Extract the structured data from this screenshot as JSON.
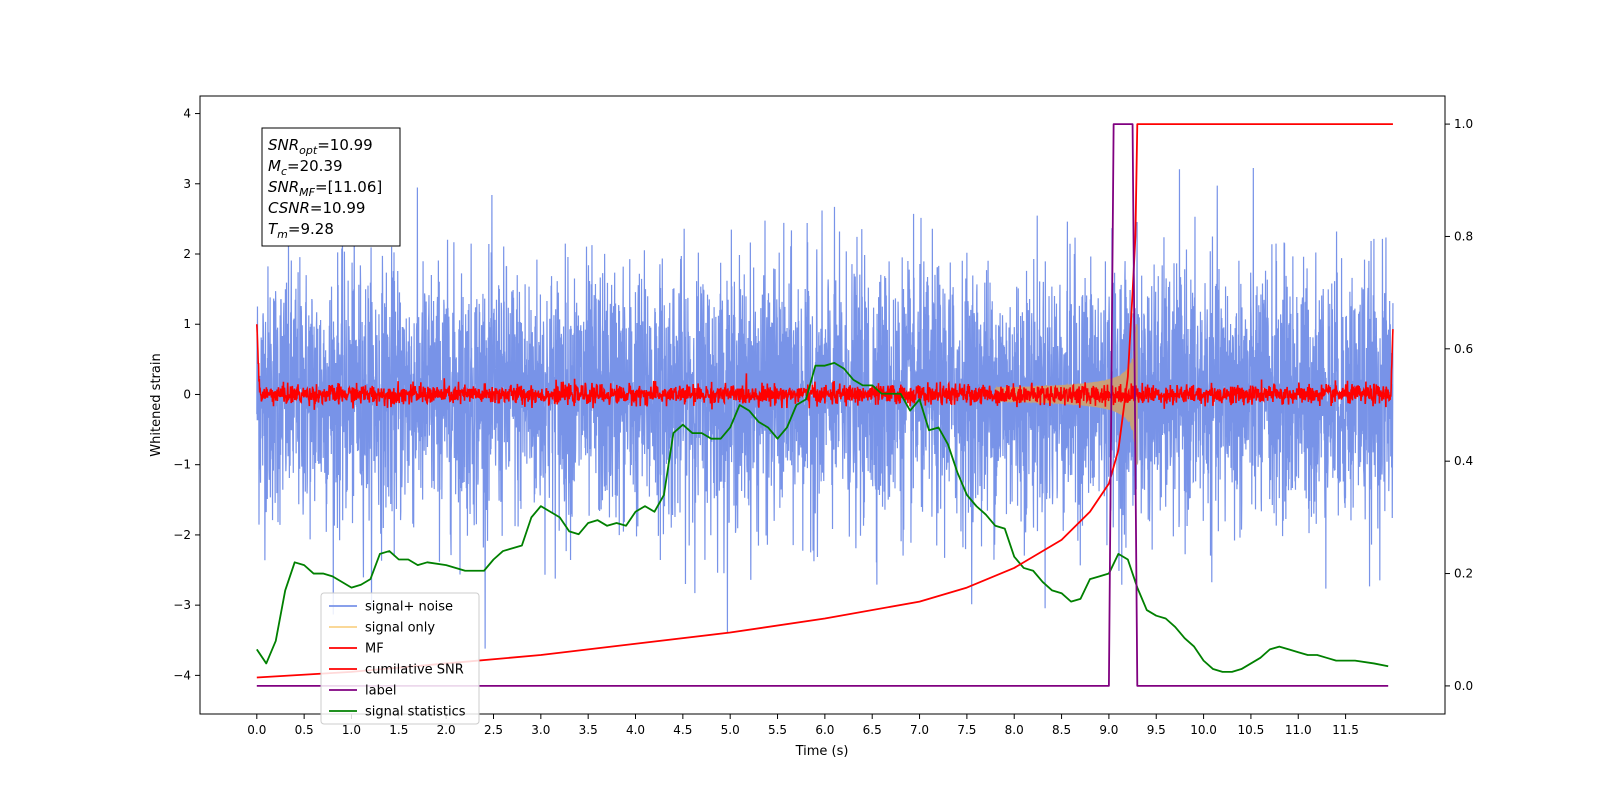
{
  "chart_data": {
    "type": "line",
    "xlabel": "Time (s)",
    "ylabel": "Whitened strain",
    "xlim": [
      -0.6,
      12.55
    ],
    "ylim": [
      -4.55,
      4.25
    ],
    "ylim_right": [
      -0.05,
      1.05
    ],
    "x_ticks": [
      "0.0",
      "0.5",
      "1.0",
      "1.5",
      "2.0",
      "2.5",
      "3.0",
      "3.5",
      "4.0",
      "4.5",
      "5.0",
      "5.5",
      "6.0",
      "6.5",
      "7.0",
      "7.5",
      "8.0",
      "8.5",
      "9.0",
      "9.5",
      "10.0",
      "10.5",
      "11.0",
      "11.5"
    ],
    "y_ticks": [
      {
        "value": 4,
        "label": "4"
      },
      {
        "value": 3,
        "label": "3"
      },
      {
        "value": 2,
        "label": "2"
      },
      {
        "value": 1,
        "label": "1"
      },
      {
        "value": 0,
        "label": "0"
      },
      {
        "value": -1,
        "label": "−1"
      },
      {
        "value": -2,
        "label": "−2"
      },
      {
        "value": -3,
        "label": "−3"
      },
      {
        "value": -4,
        "label": "−4"
      }
    ],
    "y_right_ticks": [
      "0.0",
      "0.2",
      "0.4",
      "0.6",
      "0.8",
      "1.0"
    ],
    "grid": false,
    "legend_placement": "lower-left",
    "legend": [
      {
        "name": "signal+ noise",
        "color": "#7893e8"
      },
      {
        "name": "signal only",
        "color": "#f9d28a"
      },
      {
        "name": "MF",
        "color": "#ff0000"
      },
      {
        "name": "cumilative SNR",
        "color": "#ff0000"
      },
      {
        "name": "label",
        "color": "#800080"
      },
      {
        "name": "signal statistics",
        "color": "#008000"
      }
    ],
    "annotation": {
      "lines": [
        {
          "sym": "SNR",
          "sub": "opt",
          "val": "=10.99"
        },
        {
          "sym": "M",
          "sub": "c",
          "val": "=20.39"
        },
        {
          "sym": "SNR",
          "sub": "MF",
          "val": "=[11.06]"
        },
        {
          "sym": "CSNR",
          "sub": "",
          "val": "=10.99"
        },
        {
          "sym": "T",
          "sub": "m",
          "val": "=9.28"
        }
      ]
    },
    "series": {
      "signal_plus_noise": {
        "t_start": 0.0,
        "t_end": 12.0,
        "std": 0.9,
        "axis": "left"
      },
      "signal_only": {
        "merger_time": 9.28,
        "peak_amplitude": 1.0,
        "axis": "left"
      },
      "mf": {
        "t_start": 0.0,
        "t_end": 12.0,
        "std": 0.07,
        "start_value": 1.0,
        "end_value": 0.93,
        "axis": "left"
      },
      "cumulative_snr": {
        "axis": "right",
        "points": [
          [
            0.0,
            0.015
          ],
          [
            1.0,
            0.025
          ],
          [
            2.0,
            0.04
          ],
          [
            3.0,
            0.055
          ],
          [
            4.0,
            0.075
          ],
          [
            5.0,
            0.095
          ],
          [
            6.0,
            0.12
          ],
          [
            7.0,
            0.15
          ],
          [
            7.5,
            0.175
          ],
          [
            8.0,
            0.21
          ],
          [
            8.5,
            0.26
          ],
          [
            8.8,
            0.31
          ],
          [
            9.0,
            0.36
          ],
          [
            9.1,
            0.42
          ],
          [
            9.2,
            0.55
          ],
          [
            9.25,
            0.7
          ],
          [
            9.28,
            0.8
          ],
          [
            9.3,
            1.0
          ],
          [
            12.0,
            1.0
          ]
        ]
      },
      "label": {
        "axis": "right",
        "points": [
          [
            0.0,
            0.0
          ],
          [
            9.0,
            0.0
          ],
          [
            9.05,
            1.0
          ],
          [
            9.25,
            1.0
          ],
          [
            9.3,
            0.0
          ],
          [
            11.95,
            0.0
          ]
        ]
      },
      "signal_statistics": {
        "axis": "right",
        "points": [
          [
            0.0,
            0.065
          ],
          [
            0.1,
            0.04
          ],
          [
            0.2,
            0.08
          ],
          [
            0.3,
            0.17
          ],
          [
            0.4,
            0.22
          ],
          [
            0.5,
            0.215
          ],
          [
            0.6,
            0.2
          ],
          [
            0.7,
            0.2
          ],
          [
            0.8,
            0.195
          ],
          [
            0.9,
            0.185
          ],
          [
            1.0,
            0.175
          ],
          [
            1.1,
            0.18
          ],
          [
            1.2,
            0.19
          ],
          [
            1.3,
            0.235
          ],
          [
            1.4,
            0.24
          ],
          [
            1.5,
            0.225
          ],
          [
            1.6,
            0.225
          ],
          [
            1.7,
            0.215
          ],
          [
            1.8,
            0.22
          ],
          [
            2.0,
            0.215
          ],
          [
            2.2,
            0.205
          ],
          [
            2.4,
            0.205
          ],
          [
            2.5,
            0.225
          ],
          [
            2.6,
            0.24
          ],
          [
            2.8,
            0.25
          ],
          [
            2.9,
            0.3
          ],
          [
            3.0,
            0.32
          ],
          [
            3.1,
            0.31
          ],
          [
            3.2,
            0.3
          ],
          [
            3.3,
            0.275
          ],
          [
            3.4,
            0.27
          ],
          [
            3.5,
            0.29
          ],
          [
            3.6,
            0.295
          ],
          [
            3.7,
            0.285
          ],
          [
            3.8,
            0.29
          ],
          [
            3.9,
            0.285
          ],
          [
            4.0,
            0.31
          ],
          [
            4.1,
            0.32
          ],
          [
            4.2,
            0.31
          ],
          [
            4.3,
            0.34
          ],
          [
            4.4,
            0.45
          ],
          [
            4.5,
            0.465
          ],
          [
            4.6,
            0.45
          ],
          [
            4.7,
            0.45
          ],
          [
            4.8,
            0.44
          ],
          [
            4.9,
            0.44
          ],
          [
            5.0,
            0.46
          ],
          [
            5.1,
            0.5
          ],
          [
            5.2,
            0.49
          ],
          [
            5.3,
            0.47
          ],
          [
            5.4,
            0.46
          ],
          [
            5.5,
            0.44
          ],
          [
            5.6,
            0.46
          ],
          [
            5.7,
            0.5
          ],
          [
            5.8,
            0.51
          ],
          [
            5.9,
            0.57
          ],
          [
            6.0,
            0.57
          ],
          [
            6.1,
            0.575
          ],
          [
            6.2,
            0.565
          ],
          [
            6.3,
            0.545
          ],
          [
            6.4,
            0.535
          ],
          [
            6.5,
            0.535
          ],
          [
            6.6,
            0.52
          ],
          [
            6.7,
            0.52
          ],
          [
            6.8,
            0.52
          ],
          [
            6.9,
            0.49
          ],
          [
            7.0,
            0.51
          ],
          [
            7.1,
            0.455
          ],
          [
            7.2,
            0.46
          ],
          [
            7.3,
            0.43
          ],
          [
            7.4,
            0.38
          ],
          [
            7.5,
            0.34
          ],
          [
            7.6,
            0.32
          ],
          [
            7.7,
            0.305
          ],
          [
            7.8,
            0.285
          ],
          [
            7.9,
            0.28
          ],
          [
            8.0,
            0.23
          ],
          [
            8.1,
            0.21
          ],
          [
            8.2,
            0.205
          ],
          [
            8.3,
            0.185
          ],
          [
            8.4,
            0.17
          ],
          [
            8.5,
            0.165
          ],
          [
            8.6,
            0.15
          ],
          [
            8.7,
            0.155
          ],
          [
            8.8,
            0.19
          ],
          [
            8.9,
            0.195
          ],
          [
            9.0,
            0.2
          ],
          [
            9.1,
            0.235
          ],
          [
            9.2,
            0.225
          ],
          [
            9.3,
            0.175
          ],
          [
            9.4,
            0.135
          ],
          [
            9.5,
            0.125
          ],
          [
            9.6,
            0.12
          ],
          [
            9.7,
            0.105
          ],
          [
            9.8,
            0.085
          ],
          [
            9.9,
            0.07
          ],
          [
            10.0,
            0.045
          ],
          [
            10.1,
            0.03
          ],
          [
            10.2,
            0.025
          ],
          [
            10.3,
            0.025
          ],
          [
            10.4,
            0.03
          ],
          [
            10.5,
            0.04
          ],
          [
            10.6,
            0.05
          ],
          [
            10.7,
            0.065
          ],
          [
            10.8,
            0.07
          ],
          [
            10.9,
            0.065
          ],
          [
            11.0,
            0.06
          ],
          [
            11.1,
            0.055
          ],
          [
            11.2,
            0.055
          ],
          [
            11.3,
            0.05
          ],
          [
            11.4,
            0.045
          ],
          [
            11.5,
            0.045
          ],
          [
            11.6,
            0.045
          ],
          [
            11.8,
            0.04
          ],
          [
            11.95,
            0.035
          ]
        ]
      }
    }
  }
}
